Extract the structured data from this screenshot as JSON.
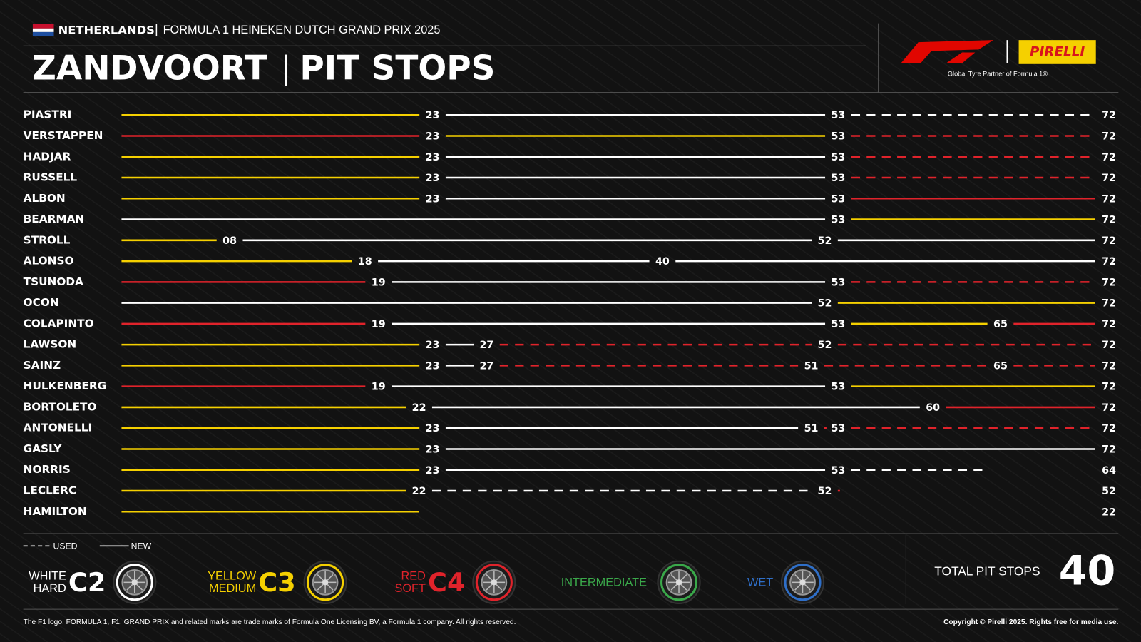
{
  "chart_data": {
    "type": "tyre-strategy",
    "header": {
      "country": "NETHERLANDS",
      "event": "FORMULA 1 HEINEKEN DUTCH GRAND PRIX 2025",
      "circuit": "ZANDVOORT",
      "title": "PIT STOPS",
      "partner_logo": "PIRELLI",
      "partner_tagline": "Global Tyre Partner of Formula 1®"
    },
    "xlim": [
      0,
      72
    ],
    "drivers": [
      {
        "name": "PIASTRI",
        "stints": [
          {
            "compound": "C3",
            "used": false,
            "end": 23
          },
          {
            "compound": "C2",
            "used": false,
            "end": 53
          },
          {
            "compound": "C2",
            "used": true,
            "end": 72
          }
        ]
      },
      {
        "name": "VERSTAPPEN",
        "stints": [
          {
            "compound": "C4",
            "used": false,
            "end": 23
          },
          {
            "compound": "C3",
            "used": false,
            "end": 53
          },
          {
            "compound": "C4",
            "used": true,
            "end": 72
          }
        ]
      },
      {
        "name": "HADJAR",
        "stints": [
          {
            "compound": "C3",
            "used": false,
            "end": 23
          },
          {
            "compound": "C2",
            "used": false,
            "end": 53
          },
          {
            "compound": "C4",
            "used": true,
            "end": 72
          }
        ]
      },
      {
        "name": "RUSSELL",
        "stints": [
          {
            "compound": "C3",
            "used": false,
            "end": 23
          },
          {
            "compound": "C2",
            "used": false,
            "end": 53
          },
          {
            "compound": "C4",
            "used": true,
            "end": 72
          }
        ]
      },
      {
        "name": "ALBON",
        "stints": [
          {
            "compound": "C3",
            "used": false,
            "end": 23
          },
          {
            "compound": "C2",
            "used": false,
            "end": 53
          },
          {
            "compound": "C4",
            "used": false,
            "end": 72
          }
        ]
      },
      {
        "name": "BEARMAN",
        "stints": [
          {
            "compound": "C2",
            "used": false,
            "end": 53
          },
          {
            "compound": "C3",
            "used": false,
            "end": 72
          }
        ]
      },
      {
        "name": "STROLL",
        "stints": [
          {
            "compound": "C3",
            "used": false,
            "end": 8,
            "label": "08"
          },
          {
            "compound": "C2",
            "used": false,
            "end": 52
          },
          {
            "compound": "C2",
            "used": false,
            "end": 72
          }
        ]
      },
      {
        "name": "ALONSO",
        "stints": [
          {
            "compound": "C3",
            "used": false,
            "end": 18
          },
          {
            "compound": "C2",
            "used": false,
            "end": 40
          },
          {
            "compound": "C2",
            "used": false,
            "end": 72
          }
        ]
      },
      {
        "name": "TSUNODA",
        "stints": [
          {
            "compound": "C4",
            "used": false,
            "end": 19
          },
          {
            "compound": "C2",
            "used": false,
            "end": 53
          },
          {
            "compound": "C4",
            "used": true,
            "end": 72
          }
        ]
      },
      {
        "name": "OCON",
        "stints": [
          {
            "compound": "C2",
            "used": false,
            "end": 52
          },
          {
            "compound": "C3",
            "used": false,
            "end": 72
          }
        ]
      },
      {
        "name": "COLAPINTO",
        "stints": [
          {
            "compound": "C4",
            "used": false,
            "end": 19
          },
          {
            "compound": "C2",
            "used": false,
            "end": 53
          },
          {
            "compound": "C3",
            "used": false,
            "end": 65
          },
          {
            "compound": "C4",
            "used": false,
            "end": 72
          }
        ]
      },
      {
        "name": "LAWSON",
        "stints": [
          {
            "compound": "C3",
            "used": false,
            "end": 23
          },
          {
            "compound": "C2",
            "used": false,
            "end": 27
          },
          {
            "compound": "C4",
            "used": true,
            "end": 52
          },
          {
            "compound": "C4",
            "used": true,
            "end": 72
          }
        ]
      },
      {
        "name": "SAINZ",
        "stints": [
          {
            "compound": "C3",
            "used": false,
            "end": 23
          },
          {
            "compound": "C2",
            "used": false,
            "end": 27
          },
          {
            "compound": "C4",
            "used": true,
            "end": 51
          },
          {
            "compound": "C4",
            "used": true,
            "end": 65
          },
          {
            "compound": "C4",
            "used": true,
            "end": 72
          }
        ]
      },
      {
        "name": "HULKENBERG",
        "stints": [
          {
            "compound": "C4",
            "used": false,
            "end": 19
          },
          {
            "compound": "C2",
            "used": false,
            "end": 53
          },
          {
            "compound": "C3",
            "used": false,
            "end": 72
          }
        ]
      },
      {
        "name": "BORTOLETO",
        "stints": [
          {
            "compound": "C3",
            "used": false,
            "end": 22
          },
          {
            "compound": "C2",
            "used": false,
            "end": 60
          },
          {
            "compound": "C4",
            "used": false,
            "end": 72
          }
        ]
      },
      {
        "name": "ANTONELLI",
        "stints": [
          {
            "compound": "C3",
            "used": false,
            "end": 23
          },
          {
            "compound": "C2",
            "used": false,
            "end": 51
          },
          {
            "compound": "C4",
            "used": true,
            "end": 53
          },
          {
            "compound": "C4",
            "used": true,
            "end": 72
          }
        ]
      },
      {
        "name": "GASLY",
        "stints": [
          {
            "compound": "C3",
            "used": false,
            "end": 23
          },
          {
            "compound": "C2",
            "used": false,
            "end": 72
          }
        ]
      },
      {
        "name": "NORRIS",
        "stints": [
          {
            "compound": "C3",
            "used": false,
            "end": 23
          },
          {
            "compound": "C2",
            "used": false,
            "end": 53
          },
          {
            "compound": "C2",
            "used": true,
            "end": 64
          }
        ]
      },
      {
        "name": "LECLERC",
        "stints": [
          {
            "compound": "C3",
            "used": false,
            "end": 22
          },
          {
            "compound": "C2",
            "used": true,
            "end": 52
          },
          {
            "compound": "C4",
            "used": true,
            "end": 52
          }
        ]
      },
      {
        "name": "HAMILTON",
        "stints": [
          {
            "compound": "C3",
            "used": false,
            "end": 22
          }
        ]
      }
    ],
    "legend": {
      "used": "USED",
      "new": "NEW",
      "compounds": [
        {
          "code": "C2",
          "color": "#ffffff",
          "line1": "WHITE",
          "line2": "HARD"
        },
        {
          "code": "C3",
          "color": "#f5d000",
          "line1": "YELLOW",
          "line2": "MEDIUM"
        },
        {
          "code": "C4",
          "color": "#e0232b",
          "line1": "RED",
          "line2": "SOFT"
        },
        {
          "name": "INTERMEDIATE",
          "color": "#3aa84a"
        },
        {
          "name": "WET",
          "color": "#2f6fc8"
        }
      ]
    },
    "total": {
      "label": "TOTAL PIT STOPS",
      "value": 40
    },
    "footer": {
      "left": "The F1 logo, FORMULA 1, F1, GRAND PRIX and related marks are trade marks of Formula One Licensing BV, a Formula 1 company. All rights reserved.",
      "right": "Copyright © Pirelli 2025. Rights free for media use."
    }
  }
}
